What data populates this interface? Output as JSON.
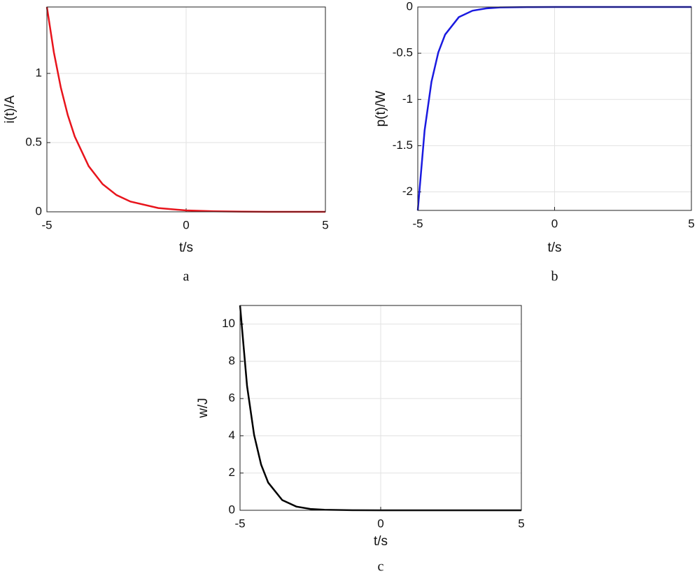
{
  "chart_data": [
    {
      "type": "line",
      "caption": "a",
      "xlabel": "t/s",
      "ylabel": "i(t)/A",
      "x": [
        -5,
        -4.75,
        -4.5,
        -4.25,
        -4,
        -3.5,
        -3,
        -2.5,
        -2,
        -1,
        0,
        1,
        2,
        3,
        4,
        5
      ],
      "series": [
        {
          "color": "#e8141c",
          "values": [
            1.48,
            1.153,
            0.898,
            0.699,
            0.544,
            0.33,
            0.2,
            0.121,
            0.074,
            0.027,
            0.01,
            0.004,
            0.001,
            0,
            0,
            0
          ]
        }
      ],
      "xlim": [
        -5,
        5
      ],
      "xticks": [
        -5,
        0,
        5
      ],
      "ylim": [
        0,
        1.48
      ],
      "yticks": [
        0,
        0.5,
        1
      ],
      "grid": true
    },
    {
      "type": "line",
      "caption": "b",
      "xlabel": "t/s",
      "ylabel": "p(t)/W",
      "x": [
        -5,
        -4.75,
        -4.5,
        -4.25,
        -4,
        -3.5,
        -3,
        -2.5,
        -2,
        -1,
        0,
        1,
        2,
        3,
        4,
        5
      ],
      "series": [
        {
          "color": "#1a1ae0",
          "values": [
            -2.2,
            -1.334,
            -0.809,
            -0.491,
            -0.298,
            -0.11,
            -0.04,
            -0.015,
            -0.005,
            -0.001,
            0,
            0,
            0,
            0,
            0,
            0
          ]
        }
      ],
      "xlim": [
        -5,
        5
      ],
      "xticks": [
        -5,
        0,
        5
      ],
      "ylim": [
        -2.2,
        0
      ],
      "yticks": [
        -2,
        -1.5,
        -1,
        -0.5,
        0
      ],
      "grid": true
    },
    {
      "type": "line",
      "caption": "c",
      "xlabel": "t/s",
      "ylabel": "w/J",
      "x": [
        -5,
        -4.75,
        -4.5,
        -4.25,
        -4,
        -3.5,
        -3,
        -2.5,
        -2,
        -1,
        0,
        1,
        2,
        3,
        4,
        5
      ],
      "series": [
        {
          "color": "#000000",
          "values": [
            11,
            6.67,
            4.05,
            2.45,
            1.49,
            0.55,
            0.2,
            0.07,
            0.03,
            0.004,
            0,
            0,
            0,
            0,
            0,
            0
          ]
        }
      ],
      "xlim": [
        -5,
        5
      ],
      "xticks": [
        -5,
        0,
        5
      ],
      "ylim": [
        0,
        11
      ],
      "yticks": [
        0,
        2,
        4,
        6,
        8,
        10
      ],
      "grid": true
    }
  ]
}
